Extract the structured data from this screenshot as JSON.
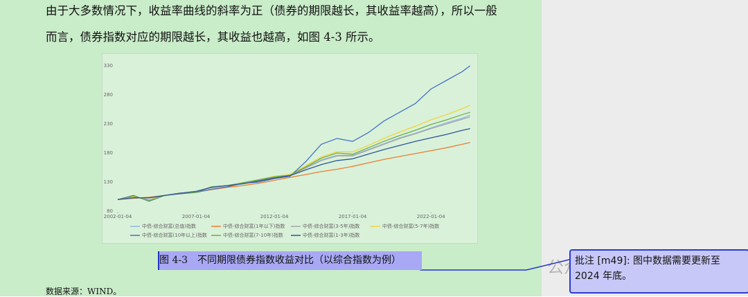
{
  "lines": [
    "由于大多数情况下，收益率曲线的斜率为正（债券的期限越长，其收益率越高），所以一般",
    "而言，债券指数对应的期限越长，其收益也越高，如图 4-3 所示。"
  ],
  "chart_data": {
    "type": "line",
    "x": [
      2002,
      2003,
      2004,
      2005,
      2006,
      2007,
      2008,
      2009,
      2010,
      2011,
      2012,
      2013,
      2014,
      2015,
      2016,
      2017,
      2018,
      2019,
      2020,
      2021,
      2022,
      2023,
      2024,
      2024.5
    ],
    "xlim": [
      2002,
      2024.6
    ],
    "xticks": [
      {
        "value": 2002,
        "label": "2002-01-04"
      },
      {
        "value": 2007,
        "label": "2007-01-04"
      },
      {
        "value": 2012,
        "label": "2012-01-04"
      },
      {
        "value": 2017,
        "label": "2017-01-04"
      },
      {
        "value": 2022,
        "label": "2022-01-04"
      }
    ],
    "ylim": [
      80,
      330
    ],
    "yticks": [
      80,
      130,
      180,
      230,
      280,
      330
    ],
    "grid": false,
    "series": [
      {
        "name": "中债-综合财富(总值)指数",
        "color": "#8fb4e3",
        "values": [
          100,
          105,
          100,
          107,
          111,
          113,
          121,
          124,
          128,
          133,
          138,
          141,
          155,
          168,
          176,
          176,
          186,
          196,
          206,
          214,
          223,
          232,
          240,
          245
        ]
      },
      {
        "name": "中债-综合财富(1年以下)指数",
        "color": "#ed7d31",
        "values": [
          100,
          102,
          104,
          107,
          110,
          113,
          117,
          121,
          124,
          128,
          133,
          138,
          143,
          148,
          152,
          157,
          163,
          169,
          174,
          179,
          184,
          189,
          195,
          198
        ]
      },
      {
        "name": "中债-综合财富(3-5年)指数",
        "color": "#a5a5a5",
        "values": [
          100,
          105,
          100,
          107,
          111,
          113,
          122,
          124,
          128,
          133,
          138,
          141,
          154,
          167,
          175,
          175,
          185,
          195,
          205,
          213,
          222,
          230,
          238,
          242
        ]
      },
      {
        "name": "中债-综合财富(5-7年)指数",
        "color": "#f2d33a",
        "values": [
          100,
          105,
          99,
          107,
          111,
          113,
          122,
          124,
          129,
          134,
          140,
          143,
          158,
          173,
          182,
          182,
          193,
          205,
          216,
          226,
          237,
          246,
          256,
          262
        ]
      },
      {
        "name": "中债-综合财富(10年以上)指数",
        "color": "#4472c4",
        "values": [
          100,
          107,
          97,
          107,
          110,
          112,
          118,
          122,
          128,
          130,
          136,
          140,
          165,
          195,
          205,
          200,
          215,
          235,
          250,
          265,
          290,
          305,
          320,
          330
        ]
      },
      {
        "name": "中债-综合财富(7-10年)指数",
        "color": "#70ad47",
        "values": [
          100,
          106,
          98,
          107,
          111,
          112,
          122,
          124,
          129,
          134,
          139,
          142,
          156,
          171,
          180,
          178,
          189,
          200,
          210,
          219,
          229,
          237,
          246,
          250
        ]
      },
      {
        "name": "中债-综合财富(1-3年)指数",
        "color": "#2e5597",
        "values": [
          100,
          103,
          103,
          107,
          111,
          114,
          121,
          124,
          127,
          132,
          137,
          141,
          151,
          160,
          167,
          170,
          178,
          186,
          193,
          200,
          206,
          212,
          219,
          222
        ]
      }
    ]
  },
  "caption": "图 4-3　不同期限债券指数收益对比（以综合指数为例）",
  "source": "数据来源：WIND。",
  "comment": {
    "label": "批注 [m49]:",
    "text": "图中数据需要更新至2024 年底。"
  },
  "watermark": "公众号 · 木铎书声"
}
